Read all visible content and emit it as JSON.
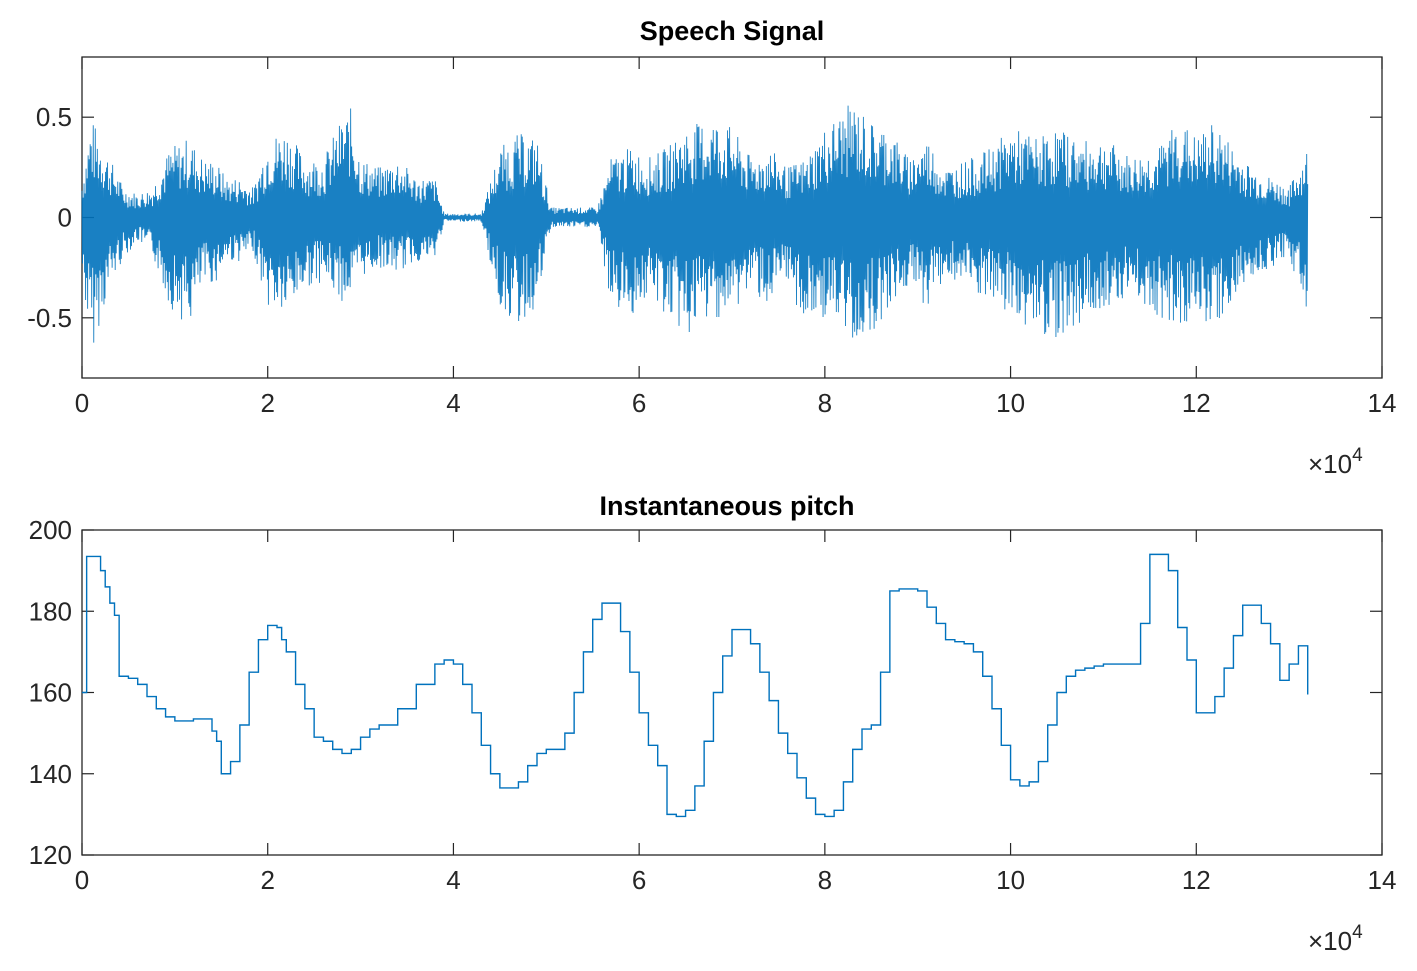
{
  "colors": {
    "line": "#0072BD",
    "axis": "#262626"
  },
  "chart_data": [
    {
      "type": "line",
      "title": "Speech Signal",
      "xlabel": "",
      "ylabel": "",
      "xlim": [
        0,
        14
      ],
      "ylim": [
        -0.8,
        0.8
      ],
      "x_multiplier": "×10",
      "x_multiplier_exp": "4",
      "xticks": [
        0,
        2,
        4,
        6,
        8,
        10,
        12,
        14
      ],
      "xtick_labels": [
        "0",
        "2",
        "4",
        "6",
        "8",
        "10",
        "12",
        "14"
      ],
      "yticks": [
        -0.5,
        0,
        0.5
      ],
      "ytick_labels": [
        "-0.5",
        "0",
        "0.5"
      ],
      "grid": false,
      "series": [
        {
          "envelope_x": [
            0.0,
            0.1,
            0.3,
            0.45,
            0.6,
            0.75,
            0.95,
            1.15,
            1.3,
            1.45,
            1.55,
            1.7,
            1.85,
            2.0,
            2.2,
            2.4,
            2.6,
            2.8,
            2.9,
            3.0,
            3.2,
            3.4,
            3.6,
            3.8,
            3.9,
            4.0,
            4.3,
            4.5,
            4.7,
            4.9,
            5.05,
            5.3,
            5.55,
            5.7,
            5.9,
            6.1,
            6.3,
            6.5,
            6.8,
            7.0,
            7.2,
            7.4,
            7.6,
            7.8,
            8.0,
            8.3,
            8.5,
            8.7,
            8.9,
            9.1,
            9.3,
            9.6,
            9.8,
            10.0,
            10.3,
            10.5,
            10.8,
            11.0,
            11.3,
            11.6,
            11.8,
            12.0,
            12.2,
            12.4,
            12.6,
            12.8,
            13.0,
            13.2
          ],
          "envelope_pos": [
            0.2,
            0.5,
            0.3,
            0.15,
            0.12,
            0.15,
            0.35,
            0.4,
            0.3,
            0.28,
            0.2,
            0.2,
            0.15,
            0.4,
            0.45,
            0.3,
            0.3,
            0.5,
            0.55,
            0.3,
            0.25,
            0.3,
            0.2,
            0.2,
            0.02,
            0.02,
            0.02,
            0.35,
            0.42,
            0.4,
            0.05,
            0.05,
            0.05,
            0.3,
            0.35,
            0.3,
            0.35,
            0.45,
            0.5,
            0.45,
            0.3,
            0.35,
            0.25,
            0.3,
            0.45,
            0.58,
            0.48,
            0.45,
            0.3,
            0.4,
            0.25,
            0.3,
            0.35,
            0.45,
            0.4,
            0.45,
            0.38,
            0.4,
            0.3,
            0.35,
            0.5,
            0.4,
            0.48,
            0.35,
            0.25,
            0.2,
            0.15,
            0.35
          ],
          "envelope_neg": [
            -0.3,
            -0.68,
            -0.35,
            -0.2,
            -0.12,
            -0.18,
            -0.45,
            -0.55,
            -0.35,
            -0.32,
            -0.22,
            -0.22,
            -0.18,
            -0.45,
            -0.5,
            -0.35,
            -0.32,
            -0.42,
            -0.4,
            -0.3,
            -0.25,
            -0.28,
            -0.22,
            -0.22,
            -0.02,
            -0.02,
            -0.02,
            -0.45,
            -0.55,
            -0.45,
            -0.05,
            -0.05,
            -0.05,
            -0.45,
            -0.5,
            -0.4,
            -0.5,
            -0.6,
            -0.5,
            -0.5,
            -0.35,
            -0.45,
            -0.35,
            -0.55,
            -0.5,
            -0.62,
            -0.58,
            -0.45,
            -0.35,
            -0.45,
            -0.3,
            -0.38,
            -0.45,
            -0.5,
            -0.58,
            -0.6,
            -0.52,
            -0.45,
            -0.38,
            -0.5,
            -0.55,
            -0.5,
            -0.55,
            -0.42,
            -0.3,
            -0.25,
            -0.2,
            -0.48
          ]
        }
      ]
    },
    {
      "type": "line",
      "title": "Instantaneous pitch",
      "xlabel": "",
      "ylabel": "",
      "xlim": [
        0,
        14
      ],
      "ylim": [
        120,
        200
      ],
      "x_multiplier": "×10",
      "x_multiplier_exp": "4",
      "xticks": [
        0,
        2,
        4,
        6,
        8,
        10,
        12,
        14
      ],
      "xtick_labels": [
        "0",
        "2",
        "4",
        "6",
        "8",
        "10",
        "12",
        "14"
      ],
      "yticks": [
        120,
        140,
        160,
        180,
        200
      ],
      "ytick_labels": [
        "120",
        "140",
        "160",
        "180",
        "200"
      ],
      "grid": false,
      "series": [
        {
          "x": [
            0.0,
            0.05,
            0.15,
            0.2,
            0.25,
            0.3,
            0.35,
            0.4,
            0.45,
            0.5,
            0.6,
            0.7,
            0.8,
            0.9,
            1.0,
            1.1,
            1.2,
            1.3,
            1.4,
            1.45,
            1.5,
            1.55,
            1.6,
            1.7,
            1.8,
            1.9,
            2.0,
            2.05,
            2.1,
            2.15,
            2.2,
            2.3,
            2.4,
            2.5,
            2.6,
            2.7,
            2.8,
            2.9,
            3.0,
            3.1,
            3.2,
            3.4,
            3.6,
            3.8,
            3.9,
            4.0,
            4.1,
            4.2,
            4.3,
            4.4,
            4.5,
            4.6,
            4.7,
            4.8,
            4.9,
            5.0,
            5.1,
            5.2,
            5.3,
            5.4,
            5.5,
            5.6,
            5.7,
            5.75,
            5.8,
            5.9,
            6.0,
            6.1,
            6.2,
            6.3,
            6.4,
            6.5,
            6.6,
            6.7,
            6.8,
            6.9,
            7.0,
            7.1,
            7.2,
            7.3,
            7.4,
            7.5,
            7.6,
            7.7,
            7.8,
            7.9,
            8.0,
            8.1,
            8.2,
            8.3,
            8.4,
            8.5,
            8.6,
            8.7,
            8.8,
            8.9,
            9.0,
            9.1,
            9.2,
            9.3,
            9.4,
            9.5,
            9.6,
            9.7,
            9.8,
            9.9,
            10.0,
            10.1,
            10.2,
            10.3,
            10.4,
            10.5,
            10.6,
            10.7,
            10.8,
            10.9,
            11.0,
            11.1,
            11.2,
            11.3,
            11.4,
            11.5,
            11.6,
            11.7,
            11.8,
            11.9,
            12.0,
            12.1,
            12.2,
            12.3,
            12.4,
            12.5,
            12.6,
            12.7,
            12.8,
            12.9,
            13.0,
            13.1,
            13.2
          ],
          "y": [
            160,
            193.5,
            193.5,
            190,
            186,
            182,
            179,
            164,
            164,
            163.5,
            162,
            159,
            156,
            154,
            153,
            153,
            153.5,
            153.5,
            150.5,
            148,
            140,
            140,
            143,
            152,
            165,
            173,
            176.5,
            176.5,
            176,
            173,
            170,
            162,
            156,
            149,
            148,
            146,
            145,
            146,
            149,
            151,
            152,
            156,
            162,
            167,
            168,
            167,
            162,
            155,
            147,
            140,
            136.5,
            136.5,
            138,
            142,
            145,
            146,
            146,
            150,
            160,
            170,
            178,
            182,
            182,
            182,
            175,
            165,
            155,
            147,
            142,
            130,
            129.5,
            131,
            137,
            148,
            160,
            169,
            175.5,
            175.5,
            172,
            165,
            158,
            150,
            145,
            139,
            134,
            130,
            129.5,
            131,
            138,
            146,
            151,
            152,
            165,
            185,
            185.5,
            185.5,
            185,
            181,
            177,
            173,
            172.5,
            172,
            170,
            164,
            156,
            147,
            138.5,
            137,
            138,
            143,
            152,
            160,
            164,
            165.5,
            166,
            166.5,
            167,
            167,
            167,
            167,
            177,
            194,
            194,
            190,
            176,
            168,
            155,
            155,
            159,
            166,
            174,
            181.5,
            181.5,
            177,
            172,
            163,
            167,
            171.5,
            159.5
          ]
        }
      ]
    }
  ]
}
